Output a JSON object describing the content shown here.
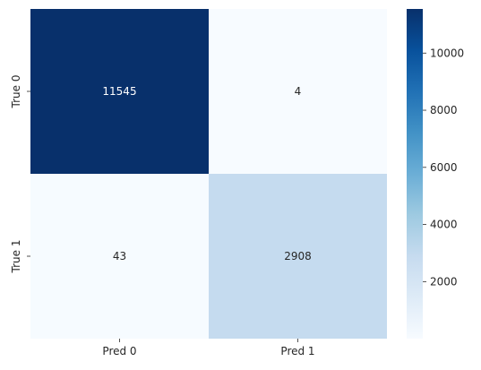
{
  "chart_data": {
    "type": "heatmap",
    "title": "",
    "xlabel": "",
    "ylabel": "",
    "x_labels": [
      "Pred 0",
      "Pred 1"
    ],
    "y_labels": [
      "True 0",
      "True 1"
    ],
    "values": [
      [
        11545,
        4
      ],
      [
        43,
        2908
      ]
    ],
    "colormap": "Blues",
    "color_low": "#f7fbff",
    "color_high": "#08306b",
    "colorbar_range": [
      4,
      11545
    ],
    "colorbar_ticks": [
      "2000",
      "4000",
      "6000",
      "8000",
      "10000"
    ],
    "annotations": true
  }
}
